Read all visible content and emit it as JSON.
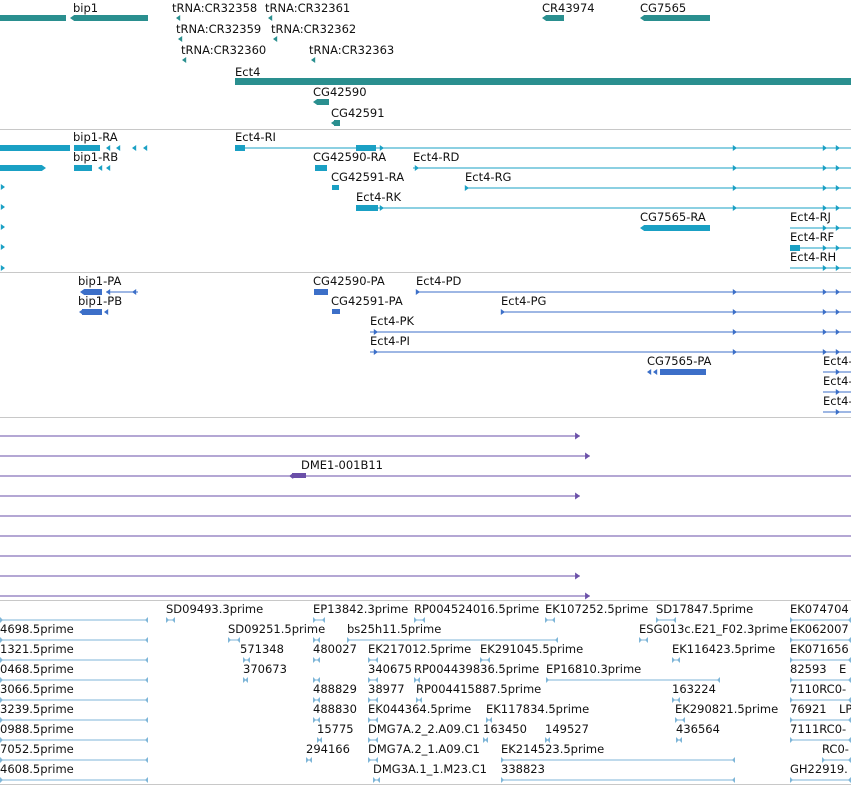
{
  "colors": {
    "gene": "#2a8f8f",
    "transcript": "#1aa0c4",
    "protein": "#3c6fc8",
    "clone": "#6a4fa8",
    "est": "#7fb6d8",
    "separator": "#c8c8c8"
  },
  "tracks": {
    "genes": {
      "labels": [
        "bip1",
        "tRNA:CR32358",
        "tRNA:CR32361",
        "CR43974",
        "CG7565",
        "tRNA:CR32359",
        "tRNA:CR32362",
        "tRNA:CR32360",
        "tRNA:CR32363",
        "Ect4",
        "CG42590",
        "CG42591"
      ]
    },
    "transcripts": {
      "labels": [
        "bip1-RA",
        "Ect4-RI",
        "bip1-RB",
        "CG42590-RA",
        "Ect4-RD",
        "CG42591-RA",
        "Ect4-RG",
        "Ect4-RK",
        "CG7565-RA",
        "Ect4-RJ",
        "Ect4-RF",
        "Ect4-RH"
      ]
    },
    "proteins": {
      "labels": [
        "bip1-PA",
        "CG42590-PA",
        "Ect4-PD",
        "bip1-PB",
        "CG42591-PA",
        "Ect4-PG",
        "Ect4-PK",
        "Ect4-PI",
        "CG7565-PA",
        "Ect4-",
        "Ect4-",
        "Ect4-"
      ]
    },
    "clones": {
      "labels": [
        "DME1-001B11"
      ]
    },
    "ests": {
      "labels": [
        "SD09493.3prime",
        "EP13842.3prime",
        "RP004524016.5prime",
        "EK107252.5prime",
        "SD17847.5prime",
        "EK074704",
        "4698.5prime",
        "SD09251.5prime",
        "bs25h11.5prime",
        "ESG013c.E21_F02.3prime",
        "EK062007",
        "1321.5prime",
        "571348",
        "480027",
        "EK217012.5prime",
        "EK291045.5prime",
        "EK116423.5prime",
        "EK071656",
        "0468.5prime",
        "370673",
        "340675",
        "RP004439836.5prime",
        "EP16810.3prime",
        "82593",
        "E",
        "3066.5prime",
        "488829",
        "38977",
        "RP004415887.5prime",
        "163224",
        "7110RC0-",
        "3239.5prime",
        "488830",
        "EK044364.5prime",
        "EK117834.5prime",
        "EK290821.5prime",
        "76921",
        "LP",
        "0988.5prime",
        "15775",
        "DMG7A.2_2.A09.C1",
        "163450",
        "149527",
        "436564",
        "7111RC0-",
        "7052.5prime",
        "294166",
        "DMG7A.2_1.A09.C1",
        "EK214523.5prime",
        "RC0-",
        "4608.5prime",
        "DMG3A.1_1.M23.C1",
        "338823",
        "GH22919."
      ]
    }
  }
}
